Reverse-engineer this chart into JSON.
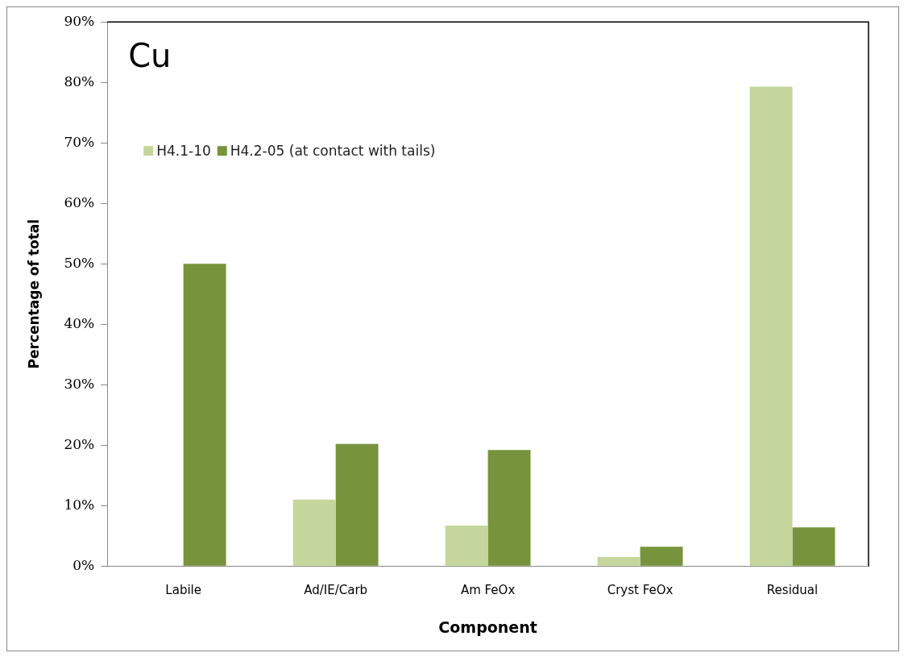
{
  "chart_data": {
    "type": "bar",
    "title": "Cu",
    "xlabel": "Component",
    "ylabel": "Percentage of total",
    "categories": [
      "Labile",
      "Ad/IE/Carb",
      "Am FeOx",
      "Cryst FeOx",
      "Residual"
    ],
    "series": [
      {
        "name": "H4.1-10",
        "color": "#c4d69b",
        "values": [
          0,
          11,
          6.7,
          1.5,
          79.3
        ]
      },
      {
        "name": "H4.2-05 (at contact with tails)",
        "color": "#77933c",
        "values": [
          50,
          20.2,
          19.2,
          3.2,
          6.4
        ]
      }
    ],
    "ylim": [
      0,
      90
    ],
    "yticks": [
      {
        "value": 0,
        "label": "0%"
      },
      {
        "value": 10,
        "label": "10%"
      },
      {
        "value": 20,
        "label": "20%"
      },
      {
        "value": 30,
        "label": "30%"
      },
      {
        "value": 40,
        "label": "40%"
      },
      {
        "value": 50,
        "label": "50%"
      },
      {
        "value": 60,
        "label": "60%"
      },
      {
        "value": 70,
        "label": "70%"
      },
      {
        "value": 80,
        "label": "80%"
      },
      {
        "value": 90,
        "label": "90%"
      }
    ],
    "legend": "top left",
    "grid": false
  }
}
